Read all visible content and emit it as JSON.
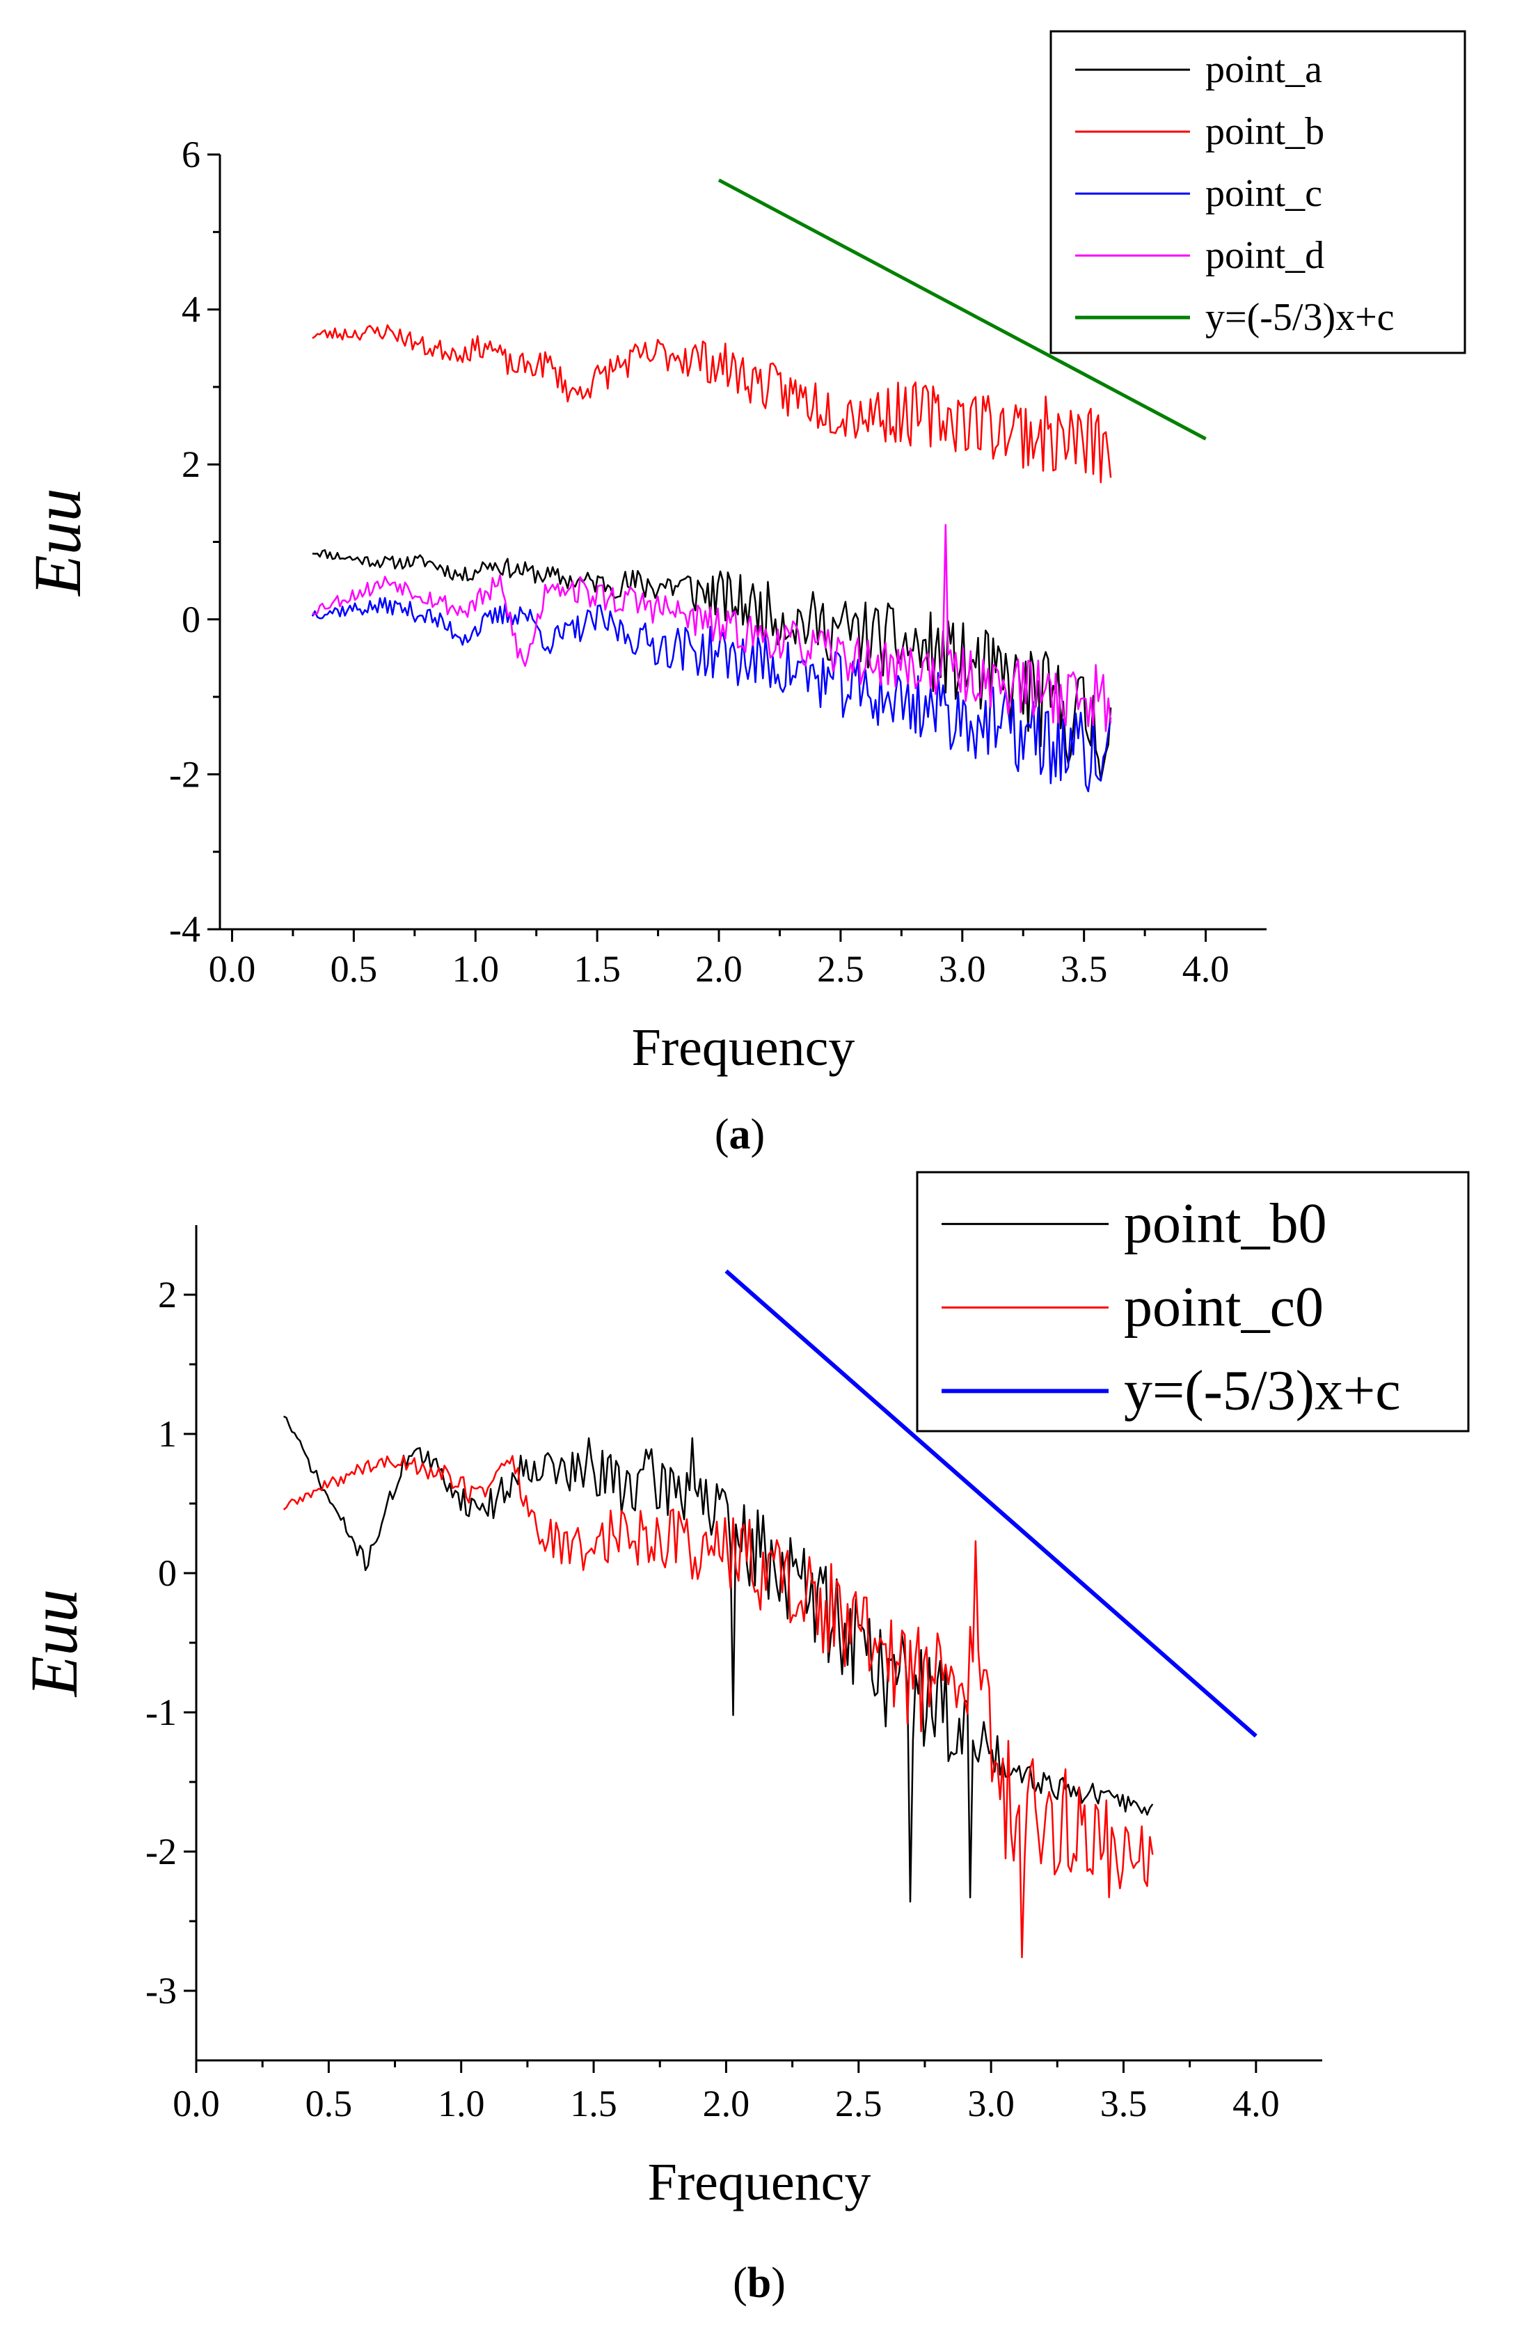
{
  "chart_data": [
    {
      "id": "a",
      "type": "line",
      "caption": {
        "open": "(",
        "letter": "a",
        "close": ")"
      },
      "xlabel": "Frequency",
      "ylabel": "Euu",
      "xlim": [
        -0.05,
        4.25
      ],
      "ylim": [
        -4,
        6
      ],
      "xticks": [
        "0.0",
        "0.5",
        "1.0",
        "1.5",
        "2.0",
        "2.5",
        "3.0",
        "3.5",
        "4.0"
      ],
      "yticks": [
        "-4",
        "-2",
        "0",
        "2",
        "4",
        "6"
      ],
      "legend_position": "top-right",
      "grid": false,
      "series": [
        {
          "name": "point_a",
          "color": "#000000",
          "start": 0.33,
          "end": 3.61,
          "n": 320,
          "keypoints": [
            [
              0.33,
              0.88
            ],
            [
              0.5,
              0.78
            ],
            [
              0.65,
              0.73
            ],
            [
              0.8,
              0.75
            ],
            [
              0.95,
              0.55
            ],
            [
              1.05,
              0.72
            ],
            [
              1.2,
              0.62
            ],
            [
              1.4,
              0.5
            ],
            [
              1.6,
              0.45
            ],
            [
              1.8,
              0.45
            ],
            [
              2.0,
              0.3
            ],
            [
              2.3,
              0.0
            ],
            [
              2.6,
              -0.2
            ],
            [
              2.9,
              -0.45
            ],
            [
              3.2,
              -0.85
            ],
            [
              3.5,
              -1.3
            ],
            [
              3.61,
              -1.5
            ]
          ],
          "noise": [
            [
              0.33,
              0.06
            ],
            [
              1.5,
              0.15
            ],
            [
              2.0,
              0.35
            ],
            [
              3.0,
              0.55
            ],
            [
              3.61,
              0.75
            ]
          ],
          "seed": 11
        },
        {
          "name": "point_b",
          "color": "#ff0000",
          "start": 0.33,
          "end": 3.61,
          "n": 320,
          "keypoints": [
            [
              0.33,
              3.67
            ],
            [
              0.65,
              3.72
            ],
            [
              0.8,
              3.5
            ],
            [
              0.95,
              3.45
            ],
            [
              1.05,
              3.55
            ],
            [
              1.15,
              3.25
            ],
            [
              1.3,
              3.3
            ],
            [
              1.4,
              2.9
            ],
            [
              1.6,
              3.3
            ],
            [
              1.8,
              3.45
            ],
            [
              2.0,
              3.3
            ],
            [
              2.2,
              3.0
            ],
            [
              2.5,
              2.7
            ],
            [
              2.8,
              2.65
            ],
            [
              3.0,
              2.6
            ],
            [
              3.3,
              2.4
            ],
            [
              3.61,
              2.2
            ]
          ],
          "noise": [
            [
              0.33,
              0.08
            ],
            [
              1.5,
              0.2
            ],
            [
              2.0,
              0.3
            ],
            [
              3.0,
              0.45
            ],
            [
              3.61,
              0.55
            ]
          ],
          "seed": 23
        },
        {
          "name": "point_c",
          "color": "#0000ff",
          "start": 0.33,
          "end": 3.61,
          "n": 320,
          "keypoints": [
            [
              0.33,
              0.08
            ],
            [
              0.65,
              0.18
            ],
            [
              0.8,
              0.05
            ],
            [
              0.95,
              -0.22
            ],
            [
              1.1,
              0.05
            ],
            [
              1.2,
              0.1
            ],
            [
              1.3,
              -0.3
            ],
            [
              1.5,
              0.0
            ],
            [
              1.7,
              -0.3
            ],
            [
              2.0,
              -0.45
            ],
            [
              2.3,
              -0.65
            ],
            [
              2.6,
              -0.95
            ],
            [
              2.9,
              -1.15
            ],
            [
              3.2,
              -1.45
            ],
            [
              3.61,
              -1.85
            ]
          ],
          "noise": [
            [
              0.33,
              0.08
            ],
            [
              1.5,
              0.2
            ],
            [
              2.0,
              0.35
            ],
            [
              3.0,
              0.5
            ],
            [
              3.61,
              0.6
            ]
          ],
          "seed": 37
        },
        {
          "name": "point_d",
          "color": "#ff00ff",
          "start": 0.33,
          "end": 3.61,
          "n": 320,
          "keypoints": [
            [
              0.33,
              0.12
            ],
            [
              0.5,
              0.32
            ],
            [
              0.65,
              0.5
            ],
            [
              0.8,
              0.3
            ],
            [
              0.95,
              0.1
            ],
            [
              1.1,
              0.45
            ],
            [
              1.2,
              -0.65
            ],
            [
              1.3,
              0.5
            ],
            [
              1.5,
              0.3
            ],
            [
              1.7,
              0.2
            ],
            [
              2.0,
              -0.1
            ],
            [
              2.3,
              -0.3
            ],
            [
              2.6,
              -0.55
            ],
            [
              2.9,
              -0.65
            ],
            [
              3.2,
              -0.85
            ],
            [
              3.61,
              -1.05
            ]
          ],
          "noise": [
            [
              0.33,
              0.08
            ],
            [
              1.5,
              0.2
            ],
            [
              2.0,
              0.25
            ],
            [
              3.0,
              0.35
            ],
            [
              3.61,
              0.5
            ]
          ],
          "seed": 53,
          "spikes": [
            [
              2.935,
              1.22
            ]
          ]
        },
        {
          "name": "y=(-5/3)x+c",
          "color": "#008000",
          "line": [
            [
              2.0,
              5.67
            ],
            [
              4.0,
              2.33
            ]
          ]
        }
      ]
    },
    {
      "id": "b",
      "type": "line",
      "caption": {
        "open": "(",
        "letter": "b",
        "close": ")"
      },
      "xlabel": "Frequency",
      "ylabel": "Euu",
      "xlim": [
        0.0,
        4.25
      ],
      "ylim": [
        -3.5,
        2.5
      ],
      "xticks": [
        "0.0",
        "0.5",
        "1.0",
        "1.5",
        "2.0",
        "2.5",
        "3.0",
        "3.5",
        "4.0"
      ],
      "yticks": [
        "-3",
        "-2",
        "-1",
        "0",
        "1",
        "2"
      ],
      "legend_position": "top-right",
      "grid": false,
      "series": [
        {
          "name": "point_b0",
          "color": "#000000",
          "start": 0.33,
          "end": 3.61,
          "n": 320,
          "keypoints": [
            [
              0.33,
              1.14
            ],
            [
              0.48,
              0.6
            ],
            [
              0.64,
              0.07
            ],
            [
              0.81,
              0.91
            ],
            [
              0.93,
              0.7
            ],
            [
              1.03,
              0.48
            ],
            [
              1.12,
              0.5
            ],
            [
              1.25,
              0.8
            ],
            [
              1.45,
              0.7
            ],
            [
              1.7,
              0.65
            ],
            [
              1.9,
              0.6
            ],
            [
              2.0,
              0.3
            ],
            [
              2.2,
              0.05
            ],
            [
              2.4,
              -0.3
            ],
            [
              2.6,
              -0.7
            ],
            [
              2.8,
              -0.95
            ],
            [
              3.0,
              -1.3
            ],
            [
              3.2,
              -1.5
            ],
            [
              3.4,
              -1.6
            ],
            [
              3.61,
              -1.7
            ]
          ],
          "noise": [
            [
              0.33,
              0.03
            ],
            [
              1.2,
              0.12
            ],
            [
              1.5,
              0.22
            ],
            [
              2.0,
              0.3
            ],
            [
              2.6,
              0.4
            ],
            [
              2.95,
              0.35
            ],
            [
              3.05,
              0.12
            ],
            [
              3.61,
              0.06
            ]
          ],
          "seed": 71,
          "spikes": [
            [
              2.03,
              -1.02
            ],
            [
              2.69,
              -2.36
            ],
            [
              2.92,
              -2.33
            ],
            [
              1.48,
              0.97
            ],
            [
              1.87,
              0.97
            ]
          ]
        },
        {
          "name": "point_c0",
          "color": "#ff0000",
          "start": 0.33,
          "end": 3.61,
          "n": 320,
          "keypoints": [
            [
              0.33,
              0.47
            ],
            [
              0.64,
              0.77
            ],
            [
              0.8,
              0.8
            ],
            [
              0.95,
              0.7
            ],
            [
              1.05,
              0.55
            ],
            [
              1.19,
              0.82
            ],
            [
              1.27,
              0.35
            ],
            [
              1.4,
              0.15
            ],
            [
              1.6,
              0.3
            ],
            [
              1.8,
              0.25
            ],
            [
              2.0,
              0.15
            ],
            [
              2.2,
              0.0
            ],
            [
              2.4,
              -0.3
            ],
            [
              2.6,
              -0.6
            ],
            [
              2.8,
              -0.8
            ],
            [
              2.95,
              -0.7
            ],
            [
              3.05,
              -1.6
            ],
            [
              3.3,
              -1.85
            ],
            [
              3.61,
              -2.0
            ]
          ],
          "noise": [
            [
              0.33,
              0.03
            ],
            [
              1.2,
              0.1
            ],
            [
              1.5,
              0.2
            ],
            [
              2.0,
              0.3
            ],
            [
              2.6,
              0.4
            ],
            [
              3.0,
              0.45
            ],
            [
              3.61,
              0.4
            ]
          ],
          "seed": 89,
          "spikes": [
            [
              2.94,
              0.23
            ],
            [
              3.12,
              -2.76
            ]
          ]
        },
        {
          "name": "y=(-5/3)x+c",
          "color": "#0000ff",
          "line": [
            [
              2.0,
              2.17
            ],
            [
              4.0,
              -1.17
            ]
          ]
        }
      ]
    }
  ]
}
